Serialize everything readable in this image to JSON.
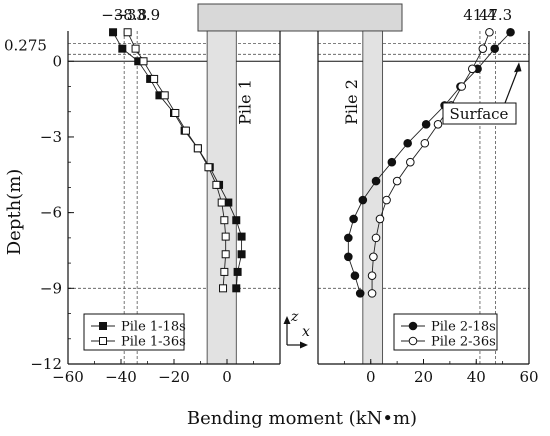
{
  "chart_data": {
    "type": "line",
    "xlabel": "Bending moment (kN•m)",
    "ylabel": "Depth(m)",
    "ylim": [
      -12,
      1.2
    ],
    "y_ticks": [
      0,
      -3,
      -6,
      -9,
      -12
    ],
    "y_extra_tick": "0.275",
    "left_panel": {
      "xlim": [
        -60,
        20
      ],
      "x_ticks": [
        -60,
        -40,
        -20,
        0
      ],
      "label": "Pile 1",
      "top_values": [
        {
          "text": "-38.8",
          "x": -38.8
        },
        {
          "text": "-33.9",
          "x": -33.9
        }
      ],
      "series": [
        {
          "name": "Pile 1-18s",
          "marker": "filled-square",
          "x": [
            -43.0,
            -39.5,
            -33.5,
            -29.0,
            -25.5,
            -20.0,
            -16.0,
            -11.0,
            -6.5,
            -3.0,
            0.5,
            3.5,
            5.5,
            5.5,
            4.0,
            3.5
          ],
          "y": [
            1.15,
            0.5,
            0.0,
            -0.7,
            -1.35,
            -2.05,
            -2.75,
            -3.45,
            -4.2,
            -4.9,
            -5.6,
            -6.3,
            -6.95,
            -7.65,
            -8.35,
            -9.0
          ]
        },
        {
          "name": "Pile 1-36s",
          "marker": "open-square",
          "x": [
            -37.5,
            -34.5,
            -31.5,
            -27.5,
            -23.5,
            -19.5,
            -15.5,
            -11.0,
            -7.0,
            -4.0,
            -2.0,
            -1.0,
            -0.5,
            -0.5,
            -1.0,
            -1.5
          ],
          "y": [
            1.15,
            0.5,
            0.0,
            -0.7,
            -1.35,
            -2.05,
            -2.75,
            -3.45,
            -4.2,
            -4.9,
            -5.6,
            -6.3,
            -6.95,
            -7.65,
            -8.35,
            -9.0
          ]
        }
      ]
    },
    "right_panel": {
      "xlim": [
        -20,
        60
      ],
      "x_ticks": [
        0,
        20,
        40,
        60
      ],
      "label": "Pile 2",
      "surface_label": "Surface",
      "top_values": [
        {
          "text": "41.4",
          "x": 41.4
        },
        {
          "text": "47.3",
          "x": 47.3
        }
      ],
      "series": [
        {
          "name": "Pile 2-18s",
          "marker": "filled-circle",
          "x": [
            53.0,
            47.0,
            40.5,
            34.0,
            28.0,
            21.0,
            14.0,
            8.0,
            2.0,
            -3.0,
            -6.5,
            -8.5,
            -8.5,
            -6.0
          ],
          "y": [
            1.15,
            0.5,
            -0.3,
            -1.0,
            -1.75,
            -2.5,
            -3.25,
            -4.0,
            -4.75,
            -5.5,
            -6.25,
            -7.0,
            -7.75,
            -8.5
          ],
          "x_extra": [
            -4.0
          ],
          "y_extra": [
            -9.2
          ]
        },
        {
          "name": "Pile 2-36s",
          "marker": "open-circle",
          "x": [
            45.0,
            42.5,
            38.5,
            34.5,
            30.5,
            25.5,
            20.5,
            15.0,
            10.0,
            6.0,
            3.5,
            2.0,
            1.0,
            0.5,
            0.5
          ],
          "y": [
            1.15,
            0.5,
            -0.3,
            -1.0,
            -1.75,
            -2.5,
            -3.25,
            -4.0,
            -4.75,
            -5.5,
            -6.25,
            -7.0,
            -7.75,
            -8.5,
            -9.2
          ]
        }
      ]
    }
  }
}
